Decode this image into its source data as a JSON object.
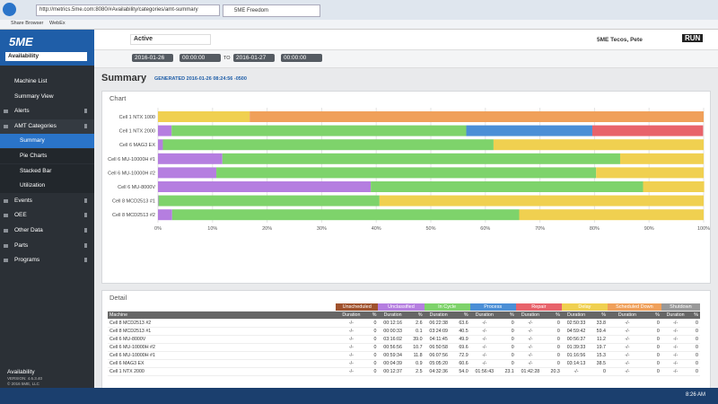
{
  "browser": {
    "url": "http://metrics.5me.com:8080/#Availability/categories/amt-summary",
    "tab": "5ME Freedom",
    "favorites": [
      "Share Browser",
      "WebEx"
    ]
  },
  "sidebar": {
    "logo": "5ME",
    "selector": "Availability",
    "menu": [
      {
        "label": "Machine List",
        "kind": "link"
      },
      {
        "label": "Summary View",
        "kind": "link"
      },
      {
        "label": "Alerts",
        "kind": "section"
      },
      {
        "label": "AMT Categories",
        "kind": "open"
      },
      {
        "label": "Summary",
        "kind": "active"
      },
      {
        "label": "Pie Charts",
        "kind": "sub"
      },
      {
        "label": "Stacked Bar",
        "kind": "sub"
      },
      {
        "label": "Utilization",
        "kind": "sub"
      },
      {
        "label": "Events",
        "kind": "section"
      },
      {
        "label": "OEE",
        "kind": "section"
      },
      {
        "label": "Other Data",
        "kind": "section"
      },
      {
        "label": "Parts",
        "kind": "section"
      },
      {
        "label": "Programs",
        "kind": "section"
      }
    ],
    "footer": {
      "title": "Availability",
      "version": "VERSION: 4.6.3.40",
      "copyright": "© 2016 5ME, LLC"
    }
  },
  "toolbar": {
    "filter": "Active",
    "user": "5ME Tecos, Pete",
    "brand": "RUN",
    "start_date": "2016-01-26",
    "start_time": "00:00:00",
    "to": "TO",
    "end_date": "2016-01-27",
    "end_time": "00:00:00"
  },
  "page": {
    "title": "Summary",
    "generated": "GENERATED 2016-01-26 08:24:56 -0500"
  },
  "chart_panel": {
    "title": "Chart"
  },
  "chart_data": {
    "type": "bar",
    "orientation": "horizontal",
    "stacked": true,
    "categories": [
      "Cell 1 NTX 1000",
      "Cell 1 NTX 2000",
      "Cell 6 MAG3 EX",
      "Cell 6 MU-10000H #1",
      "Cell 6 MU-10000H #2",
      "Cell 6 MU-8000V",
      "Cell 8 MCD2513 #1",
      "Cell 8 MCD2513 #2"
    ],
    "series": [
      {
        "name": "Unscheduled",
        "color": "#a0522d",
        "values": [
          0,
          0,
          0,
          0,
          0,
          0,
          0,
          0
        ]
      },
      {
        "name": "Unclassified",
        "color": "#b57ee0",
        "values": [
          0,
          2.5,
          0.9,
          11.8,
          10.7,
          39.0,
          0.1,
          2.6
        ]
      },
      {
        "name": "In Cycle",
        "color": "#7ed36b",
        "values": [
          0,
          54.0,
          60.6,
          72.9,
          69.6,
          49.9,
          40.5,
          63.6
        ]
      },
      {
        "name": "Process",
        "color": "#4b8fd6",
        "values": [
          0,
          23.1,
          0,
          0,
          0,
          0,
          0,
          0
        ]
      },
      {
        "name": "Repair",
        "color": "#e8636b",
        "values": [
          0,
          20.3,
          0,
          0,
          0,
          0,
          0,
          0
        ]
      },
      {
        "name": "Delay",
        "color": "#f0d050",
        "values": [
          16.8,
          0,
          38.5,
          15.3,
          19.7,
          11.2,
          59.4,
          33.8
        ]
      },
      {
        "name": "Scheduled Down",
        "color": "#f0a05a",
        "values": [
          83.2,
          0,
          0,
          0,
          0,
          0,
          0,
          0
        ]
      },
      {
        "name": "Shutdown",
        "color": "#999999",
        "values": [
          0,
          0,
          0,
          0,
          0,
          0,
          0,
          0
        ]
      }
    ],
    "xlim": [
      0,
      100
    ],
    "xticks": [
      {
        "value": 0,
        "label": "0%"
      },
      {
        "value": 10,
        "label": "10%"
      },
      {
        "value": 20,
        "label": "20%"
      },
      {
        "value": 30,
        "label": "30%"
      },
      {
        "value": 40,
        "label": "40%"
      },
      {
        "value": 50,
        "label": "50%"
      },
      {
        "value": 60,
        "label": "60%"
      },
      {
        "value": 70,
        "label": "70%"
      },
      {
        "value": 80,
        "label": "80%"
      },
      {
        "value": 90,
        "label": "90%"
      },
      {
        "value": 100,
        "label": "100%"
      }
    ],
    "grid": true
  },
  "detail": {
    "title": "Detail",
    "machine_header": "Machine",
    "subheaders": [
      "Duration",
      "%"
    ],
    "rows": [
      [
        "Cell 8 MCD2513 #2",
        "-/-",
        "0",
        "00:12:16",
        "2.6",
        "06:22:38",
        "63.6",
        "-/-",
        "0",
        "-/-",
        "0",
        "02:50:33",
        "33.8",
        "-/-",
        "0",
        "-/-",
        "0"
      ],
      [
        "Cell 8 MCD2513 #1",
        "-/-",
        "0",
        "00:00:33",
        "0.1",
        "03:24:09",
        "40.5",
        "-/-",
        "0",
        "-/-",
        "0",
        "04:59:42",
        "59.4",
        "-/-",
        "0",
        "-/-",
        "0"
      ],
      [
        "Cell 6 MU-8000V",
        "-/-",
        "0",
        "03:16:02",
        "39.0",
        "04:11:45",
        "49.9",
        "-/-",
        "0",
        "-/-",
        "0",
        "00:56:37",
        "11.2",
        "-/-",
        "0",
        "-/-",
        "0"
      ],
      [
        "Cell 6 MU-10000H #2",
        "-/-",
        "0",
        "00:56:56",
        "10.7",
        "06:50:58",
        "69.6",
        "-/-",
        "0",
        "-/-",
        "0",
        "01:39:33",
        "19.7",
        "-/-",
        "0",
        "-/-",
        "0"
      ],
      [
        "Cell 6 MU-10000H #1",
        "-/-",
        "0",
        "00:59:34",
        "11.8",
        "06:07:56",
        "72.9",
        "-/-",
        "0",
        "-/-",
        "0",
        "01:16:56",
        "15.3",
        "-/-",
        "0",
        "-/-",
        "0"
      ],
      [
        "Cell 6 MAG3 EX",
        "-/-",
        "0",
        "00:04:39",
        "0.9",
        "05:05:20",
        "60.6",
        "-/-",
        "0",
        "-/-",
        "0",
        "03:14:13",
        "38.5",
        "-/-",
        "0",
        "-/-",
        "0"
      ],
      [
        "Cell 1 NTX 2000",
        "-/-",
        "0",
        "00:12:37",
        "2.5",
        "04:32:36",
        "54.0",
        "01:56:43",
        "23.1",
        "01:42:28",
        "20.3",
        "-/-",
        "0",
        "-/-",
        "0",
        "-/-",
        "0"
      ]
    ]
  },
  "taskbar": {
    "time": "8:26 AM"
  }
}
